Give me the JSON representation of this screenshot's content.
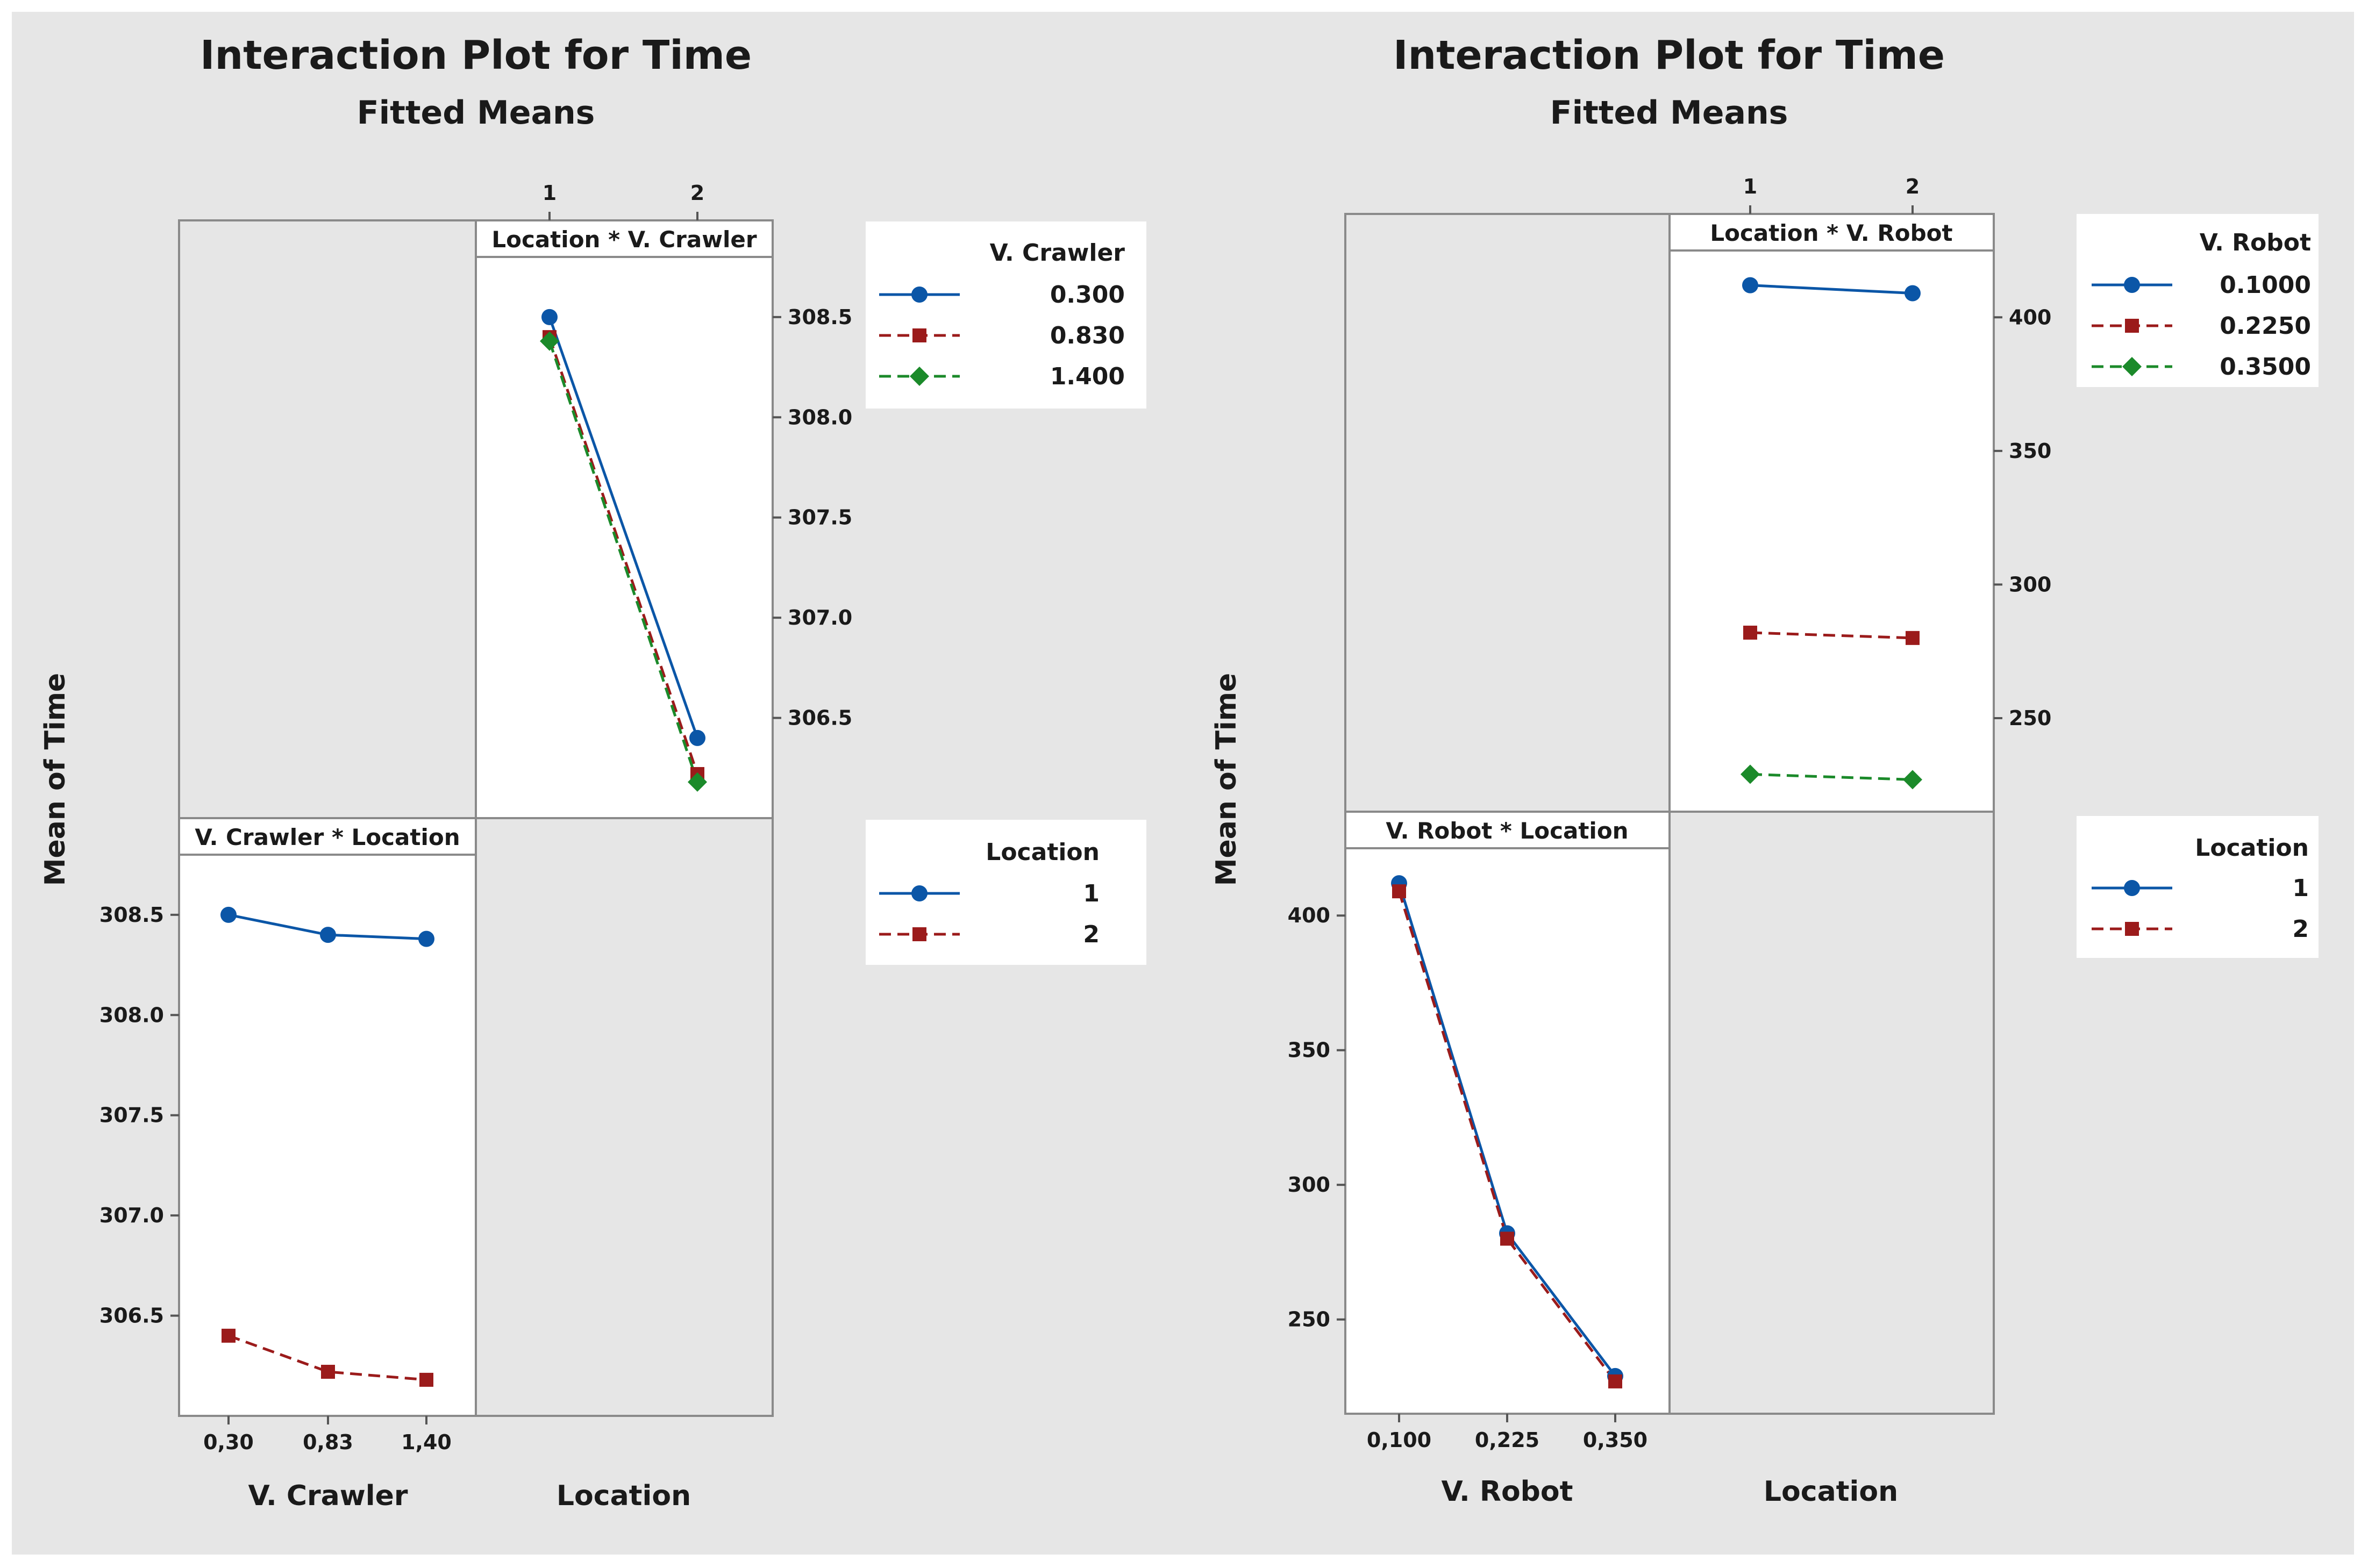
{
  "colors": {
    "background": "#e6e6e6",
    "panel_fill": "#ffffff",
    "series_1": "#0b56a7",
    "series_2": "#9b1b1b",
    "series_3": "#1b8a2a"
  },
  "chart_data": [
    {
      "type": "line",
      "title": "Interaction Plot for Time",
      "subtitle": "Fitted Means",
      "ylabel": "Mean of Time",
      "xlabels": [
        "V. Crawler",
        "Location"
      ],
      "panels": [
        {
          "strip": "Location * V. Crawler",
          "grid_position": "top-right",
          "x": [
            "1",
            "2"
          ],
          "ylim": [
            306.0,
            308.8
          ],
          "yticks": [
            "306.5",
            "307.0",
            "307.5",
            "308.0",
            "308.5"
          ],
          "ytick_values": [
            306.5,
            307.0,
            307.5,
            308.0,
            308.5
          ],
          "yaxis_side": "right",
          "xaxis_side": "top",
          "series": [
            {
              "name": "0.300",
              "values": [
                308.5,
                306.4
              ]
            },
            {
              "name": "0.830",
              "values": [
                308.4,
                306.22
              ]
            },
            {
              "name": "1.400",
              "values": [
                308.38,
                306.18
              ]
            }
          ]
        },
        {
          "strip": "V. Crawler * Location",
          "grid_position": "bottom-left",
          "x": [
            "0,30",
            "0,83",
            "1,40"
          ],
          "ylim": [
            306.0,
            308.8
          ],
          "yticks": [
            "306.5",
            "307.0",
            "307.5",
            "308.0",
            "308.5"
          ],
          "ytick_values": [
            306.5,
            307.0,
            307.5,
            308.0,
            308.5
          ],
          "yaxis_side": "left",
          "xaxis_side": "bottom",
          "series": [
            {
              "name": "1",
              "values": [
                308.5,
                308.4,
                308.38
              ]
            },
            {
              "name": "2",
              "values": [
                306.4,
                306.22,
                306.18
              ]
            }
          ]
        }
      ],
      "legends": [
        {
          "title": "V. Crawler",
          "placement": "top-right",
          "entries": [
            "0.300",
            "0.830",
            "1.400"
          ]
        },
        {
          "title": "Location",
          "placement": "middle-right",
          "entries": [
            "1",
            "2"
          ]
        }
      ]
    },
    {
      "type": "line",
      "title": "Interaction Plot for Time",
      "subtitle": "Fitted Means",
      "ylabel": "Mean of Time",
      "xlabels": [
        "V. Robot",
        "Location"
      ],
      "panels": [
        {
          "strip": "Location * V. Robot",
          "grid_position": "top-right",
          "x": [
            "1",
            "2"
          ],
          "ylim": [
            215,
            425
          ],
          "yticks": [
            "250",
            "300",
            "350",
            "400"
          ],
          "ytick_values": [
            250,
            300,
            350,
            400
          ],
          "yaxis_side": "right",
          "xaxis_side": "top",
          "series": [
            {
              "name": "0.1000",
              "values": [
                412,
                409
              ]
            },
            {
              "name": "0.2250",
              "values": [
                282,
                280
              ]
            },
            {
              "name": "0.3500",
              "values": [
                229,
                227
              ]
            }
          ]
        },
        {
          "strip": "V. Robot * Location",
          "grid_position": "bottom-left",
          "x": [
            "0,100",
            "0,225",
            "0,350"
          ],
          "ylim": [
            215,
            425
          ],
          "yticks": [
            "250",
            "300",
            "350",
            "400"
          ],
          "ytick_values": [
            250,
            300,
            350,
            400
          ],
          "yaxis_side": "left",
          "xaxis_side": "bottom",
          "series": [
            {
              "name": "1",
              "values": [
                412,
                282,
                229
              ]
            },
            {
              "name": "2",
              "values": [
                409,
                280,
                227
              ]
            }
          ]
        }
      ],
      "legends": [
        {
          "title": "V. Robot",
          "placement": "top-right",
          "entries": [
            "0.1000",
            "0.2250",
            "0.3500"
          ]
        },
        {
          "title": "Location",
          "placement": "middle-right",
          "entries": [
            "1",
            "2"
          ]
        }
      ]
    }
  ]
}
